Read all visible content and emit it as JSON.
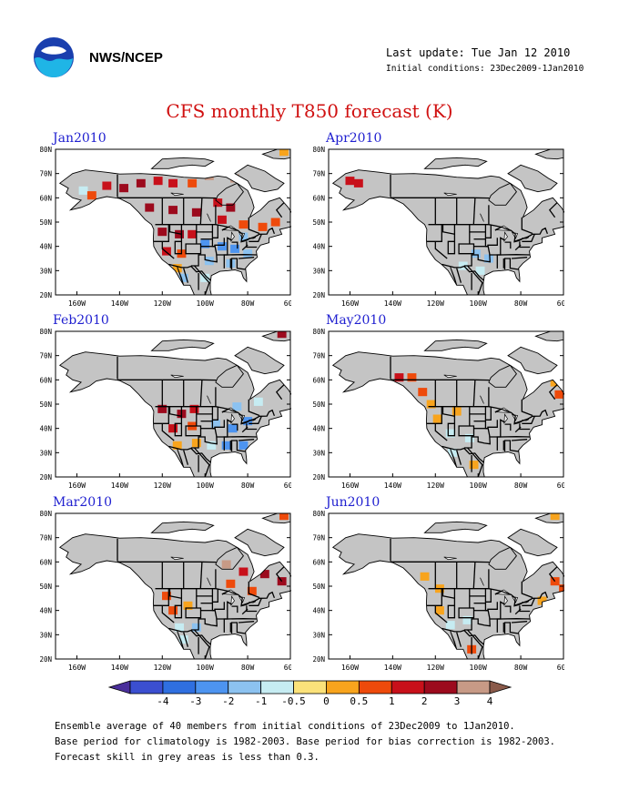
{
  "header": {
    "agency": "NWS/NCEP",
    "last_update": "Last update: Tue Jan 12 2010",
    "initial_conditions": "Initial conditions: 23Dec2009-1Jan2010",
    "logo_icon": "noaa-logo-icon"
  },
  "title": "CFS monthly T850 forecast (K)",
  "lat_labels": [
    "80N",
    "70N",
    "60N",
    "50N",
    "40N",
    "30N",
    "20N"
  ],
  "lon_labels": [
    "160W",
    "140W",
    "120W",
    "100W",
    "80W",
    "60W"
  ],
  "panels": [
    {
      "month": "Jan2010",
      "anomalies": [
        {
          "lon": -157,
          "lat": 63,
          "v": -0.5
        },
        {
          "lon": -153,
          "lat": 61,
          "v": 1
        },
        {
          "lon": -146,
          "lat": 65,
          "v": 2
        },
        {
          "lon": -138,
          "lat": 64,
          "v": 3
        },
        {
          "lon": -130,
          "lat": 66,
          "v": 3
        },
        {
          "lon": -122,
          "lat": 67,
          "v": 2
        },
        {
          "lon": -115,
          "lat": 66,
          "v": 2
        },
        {
          "lon": -106,
          "lat": 66,
          "v": 1
        },
        {
          "lon": -98,
          "lat": 69,
          "v": 4
        },
        {
          "lon": -86,
          "lat": 68,
          "v": 4
        },
        {
          "lon": -88,
          "lat": 56,
          "v": 3
        },
        {
          "lon": -94,
          "lat": 58,
          "v": 2
        },
        {
          "lon": -126,
          "lat": 56,
          "v": 3
        },
        {
          "lon": -115,
          "lat": 55,
          "v": 3
        },
        {
          "lon": -104,
          "lat": 54,
          "v": 3
        },
        {
          "lon": -92,
          "lat": 51,
          "v": 2
        },
        {
          "lon": -82,
          "lat": 49,
          "v": 1
        },
        {
          "lon": -73,
          "lat": 48,
          "v": 1
        },
        {
          "lon": -67,
          "lat": 50,
          "v": 1
        },
        {
          "lon": -63,
          "lat": 79,
          "v": 0.5
        },
        {
          "lon": -120,
          "lat": 46,
          "v": 3
        },
        {
          "lon": -112,
          "lat": 45,
          "v": 3
        },
        {
          "lon": -106,
          "lat": 45,
          "v": 2
        },
        {
          "lon": -118,
          "lat": 38,
          "v": 2
        },
        {
          "lon": -111,
          "lat": 37,
          "v": 1
        },
        {
          "lon": -113,
          "lat": 31,
          "v": 0.5
        },
        {
          "lon": -110,
          "lat": 27,
          "v": -1
        },
        {
          "lon": -100,
          "lat": 41,
          "v": -2
        },
        {
          "lon": -92,
          "lat": 40,
          "v": -2
        },
        {
          "lon": -86,
          "lat": 39,
          "v": -2
        },
        {
          "lon": -80,
          "lat": 37,
          "v": -1
        },
        {
          "lon": -98,
          "lat": 34,
          "v": -1
        },
        {
          "lon": -88,
          "lat": 33,
          "v": -1
        },
        {
          "lon": -100,
          "lat": 27,
          "v": -0.5
        },
        {
          "lon": -82,
          "lat": 44,
          "v": -1
        }
      ]
    },
    {
      "month": "Apr2010",
      "anomalies": [
        {
          "lon": -160,
          "lat": 67,
          "v": 2
        },
        {
          "lon": -156,
          "lat": 66,
          "v": 2
        },
        {
          "lon": -101,
          "lat": 37,
          "v": -1
        },
        {
          "lon": -95,
          "lat": 35,
          "v": -1
        },
        {
          "lon": -99,
          "lat": 30,
          "v": -0.5
        },
        {
          "lon": -107,
          "lat": 32,
          "v": -0.5
        }
      ]
    },
    {
      "month": "Feb2010",
      "anomalies": [
        {
          "lon": -64,
          "lat": 79,
          "v": 3
        },
        {
          "lon": -120,
          "lat": 48,
          "v": 3
        },
        {
          "lon": -111,
          "lat": 46,
          "v": 3
        },
        {
          "lon": -105,
          "lat": 48,
          "v": 2
        },
        {
          "lon": -115,
          "lat": 40,
          "v": 2
        },
        {
          "lon": -106,
          "lat": 41,
          "v": 1
        },
        {
          "lon": -113,
          "lat": 33,
          "v": 0.5
        },
        {
          "lon": -104,
          "lat": 34,
          "v": 0.5
        },
        {
          "lon": -95,
          "lat": 42,
          "v": -1
        },
        {
          "lon": -87,
          "lat": 40,
          "v": -2
        },
        {
          "lon": -80,
          "lat": 43,
          "v": -2
        },
        {
          "lon": -90,
          "lat": 33,
          "v": -2
        },
        {
          "lon": -82,
          "lat": 33,
          "v": -2
        },
        {
          "lon": -85,
          "lat": 49,
          "v": -1
        },
        {
          "lon": -75,
          "lat": 51,
          "v": -0.5
        },
        {
          "lon": -97,
          "lat": 33,
          "v": -0.5
        }
      ]
    },
    {
      "month": "May2010",
      "anomalies": [
        {
          "lon": -137,
          "lat": 61,
          "v": 2
        },
        {
          "lon": -131,
          "lat": 61,
          "v": 1
        },
        {
          "lon": -126,
          "lat": 55,
          "v": 1
        },
        {
          "lon": -122,
          "lat": 50,
          "v": 0.5
        },
        {
          "lon": -119,
          "lat": 44,
          "v": 0.5
        },
        {
          "lon": -110,
          "lat": 47,
          "v": 0.5
        },
        {
          "lon": -113,
          "lat": 38,
          "v": -0.5
        },
        {
          "lon": -104,
          "lat": 36,
          "v": -0.5
        },
        {
          "lon": -112,
          "lat": 30,
          "v": -0.5
        },
        {
          "lon": -102,
          "lat": 25,
          "v": 0.5
        },
        {
          "lon": -64,
          "lat": 59,
          "v": 0.5
        },
        {
          "lon": -62,
          "lat": 54,
          "v": 1
        }
      ]
    },
    {
      "month": "Mar2010",
      "anomalies": [
        {
          "lon": -63,
          "lat": 79,
          "v": 1
        },
        {
          "lon": -82,
          "lat": 56,
          "v": 2
        },
        {
          "lon": -72,
          "lat": 55,
          "v": 3
        },
        {
          "lon": -64,
          "lat": 52,
          "v": 3
        },
        {
          "lon": -88,
          "lat": 51,
          "v": 1
        },
        {
          "lon": -78,
          "lat": 48,
          "v": 1
        },
        {
          "lon": -90,
          "lat": 59,
          "v": 4
        },
        {
          "lon": -118,
          "lat": 46,
          "v": 1
        },
        {
          "lon": -115,
          "lat": 40,
          "v": 1
        },
        {
          "lon": -108,
          "lat": 42,
          "v": 0.5
        },
        {
          "lon": -112,
          "lat": 33,
          "v": -0.5
        },
        {
          "lon": -104,
          "lat": 33,
          "v": -1
        },
        {
          "lon": -110,
          "lat": 28,
          "v": -0.5
        }
      ]
    },
    {
      "month": "Jun2010",
      "anomalies": [
        {
          "lon": -64,
          "lat": 79,
          "v": 0.5
        },
        {
          "lon": -125,
          "lat": 54,
          "v": 0.5
        },
        {
          "lon": -118,
          "lat": 49,
          "v": 0.5
        },
        {
          "lon": -118,
          "lat": 40,
          "v": 0.5
        },
        {
          "lon": -113,
          "lat": 34,
          "v": -0.5
        },
        {
          "lon": -105,
          "lat": 36,
          "v": -0.5
        },
        {
          "lon": -103,
          "lat": 24,
          "v": 1
        },
        {
          "lon": -70,
          "lat": 44,
          "v": 0.5
        },
        {
          "lon": -64,
          "lat": 52,
          "v": 1
        },
        {
          "lon": -60,
          "lat": 49,
          "v": 1
        }
      ]
    }
  ],
  "colorbar": {
    "labels": [
      "-4",
      "-3",
      "-2",
      "-1",
      "-0.5",
      "0",
      "0.5",
      "1",
      "2",
      "3",
      "4"
    ],
    "colors": [
      "#4a2f9b",
      "#3b4fd0",
      "#2f6fe0",
      "#4d94f0",
      "#8cc2f0",
      "#c6ecf2",
      "#fbe27a",
      "#f8a41d",
      "#ee4a0b",
      "#c8101a",
      "#9c0a1d",
      "#c79a86",
      "#8a5a4a"
    ]
  },
  "palette": {
    "grey": "#c4c4c4",
    "title_red": "#d01010",
    "month_blue": "#2020d0"
  },
  "footnote": [
    "Ensemble average of 40 members from initial conditions of 23Dec2009 to 1Jan2010.",
    "Base period for climatology is 1982-2003. Base period for bias correction is 1982-2003.",
    "Forecast skill in grey areas is less than 0.3."
  ]
}
